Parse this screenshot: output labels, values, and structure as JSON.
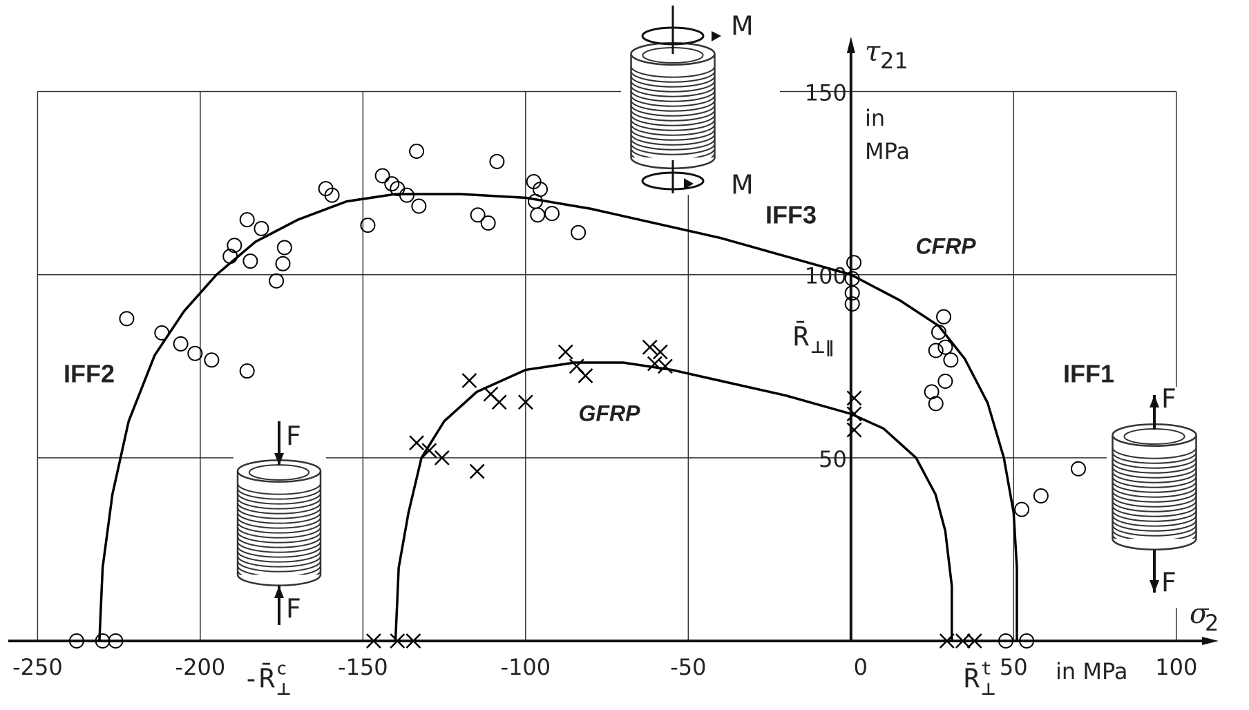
{
  "chart_data": {
    "type": "scatter",
    "x_label": {
      "symbol": "σ",
      "sub": "2"
    },
    "y_label": {
      "symbol": "τ",
      "sub": "21"
    },
    "x_unit": "in MPa",
    "y_unit": [
      "in",
      "MPa"
    ],
    "xlim": [
      -259,
      113
    ],
    "ylim": [
      0,
      165
    ],
    "xticks": [
      -250,
      -200,
      -150,
      -100,
      -50,
      0,
      50,
      100
    ],
    "yticks": [
      50,
      100,
      150
    ],
    "grid": true,
    "series": [
      {
        "name": "CFRP",
        "color": "#000000",
        "x": [
          -231,
          -230,
          -227,
          -222,
          -214,
          -205,
          -195,
          -183,
          -170,
          -155,
          -140,
          -120,
          -100,
          -80,
          -60,
          -40,
          -20,
          0,
          15,
          27,
          35,
          42,
          47,
          50,
          51,
          51
        ],
        "values": [
          0,
          20,
          40,
          60,
          78,
          90,
          100,
          109,
          115,
          120,
          122,
          122,
          121,
          118,
          114,
          110,
          105,
          100,
          93,
          86,
          77,
          65,
          50,
          35,
          20,
          0
        ],
        "points": {
          "marker": "circle",
          "x": [
            -133.5,
            -108.8,
            -144,
            -141.1,
            -139.4,
            -136.5,
            -132.8,
            -161.4,
            -159.5,
            -148.5,
            -114.7,
            -111.5,
            -97.5,
            -95.5,
            -97,
            -96.3,
            -91.9,
            -83.8,
            -185.6,
            -181.2,
            -189.5,
            -174.1,
            -190.8,
            -184.6,
            -174.6,
            -176.6,
            -222.6,
            -211.8,
            -206,
            -201.6,
            -196.5,
            -185.6,
            0.9,
            0.4,
            0.4,
            0.4,
            28.5,
            27,
            26.1,
            29,
            30.7,
            29,
            24.8,
            26.1,
            52.5,
            58.4,
            69.9,
            -238,
            -230,
            -226,
            47.6,
            54
          ],
          "values": [
            133.7,
            130.9,
            127,
            124.8,
            123.5,
            121.7,
            118.7,
            123.5,
            121.7,
            113.5,
            116.3,
            114.1,
            125.4,
            123.3,
            120,
            116.3,
            116.7,
            111.5,
            115,
            112.6,
            108,
            107.4,
            105,
            103.7,
            103,
            98.3,
            88,
            84.1,
            81.1,
            78.5,
            76.7,
            73.7,
            103.3,
            98.9,
            95,
            92,
            88.5,
            84.3,
            79.3,
            80.2,
            76.7,
            70.9,
            68,
            64.8,
            35.9,
            39.6,
            47,
            0,
            0,
            0,
            0,
            0
          ]
        }
      },
      {
        "name": "GFRP",
        "color": "#000000",
        "x": [
          -140,
          -139,
          -136,
          -132,
          -125,
          -115,
          -100,
          -85,
          -70,
          -55,
          -40,
          -20,
          0,
          10,
          20,
          26,
          29,
          31,
          31
        ],
        "values": [
          0,
          20,
          35,
          50,
          60,
          68,
          74,
          76,
          76,
          74,
          71,
          67,
          62,
          58,
          50,
          40,
          30,
          15,
          0
        ],
        "points": {
          "marker": "cross",
          "x": [
            -117.3,
            -87.7,
            -84.3,
            -81.6,
            -61.8,
            -58.6,
            -60.3,
            -57.1,
            -110.7,
            -108.1,
            -100,
            -133.5,
            -129.6,
            -125.7,
            -114.9,
            1,
            1,
            1,
            -146.7,
            -139.4,
            -134.5,
            29.5,
            34.4,
            38
          ],
          "values": [
            71.1,
            78.9,
            75,
            72.4,
            80.2,
            78.9,
            75.7,
            75,
            67.4,
            65.2,
            65.2,
            54.1,
            52,
            50,
            46.3,
            66.3,
            62,
            57.6,
            0,
            0,
            0,
            0,
            0,
            0
          ]
        }
      }
    ],
    "annotations": [
      {
        "text": "IFF1",
        "color": "#e3262e"
      },
      {
        "text": "IFF2",
        "color": "#b58a68"
      },
      {
        "text": "IFF3",
        "color": "#8e52d9"
      }
    ],
    "strengths": [
      {
        "base": "-R̄",
        "sup": "c",
        "sub": "⊥",
        "color": "#b58a68"
      },
      {
        "base": "R̄",
        "sup": "t",
        "sub": "⊥",
        "color": "#e3262e"
      },
      {
        "base": "R̄",
        "sub": "⊥∥",
        "color": "#6a5cf0"
      }
    ],
    "icon_labels": {
      "force": "F",
      "moment": "M"
    }
  }
}
